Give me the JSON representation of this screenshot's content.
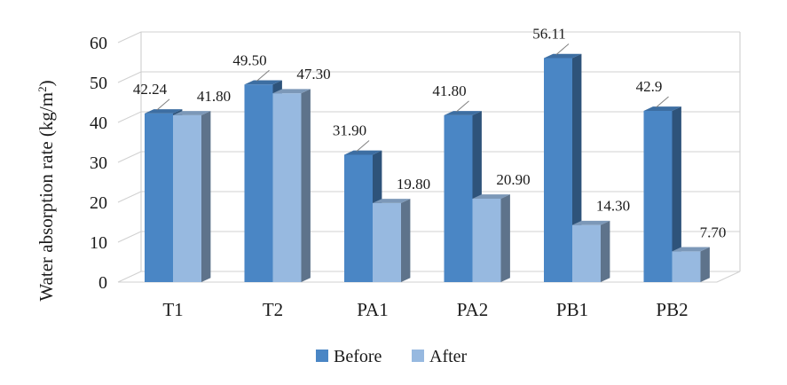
{
  "chart_data": {
    "type": "bar",
    "categories": [
      "T1",
      "T2",
      "PA1",
      "PA2",
      "PB1",
      "PB2"
    ],
    "series": [
      {
        "name": "Before",
        "values": [
          42.24,
          49.5,
          31.9,
          41.8,
          56.11,
          42.9
        ],
        "labels": [
          "42.24",
          "49.50",
          "31.90",
          "41.80",
          "56.11",
          "42.9"
        ],
        "color": "#4a86c5"
      },
      {
        "name": "After",
        "values": [
          41.8,
          47.3,
          19.8,
          20.9,
          14.3,
          7.7
        ],
        "labels": [
          "41.80",
          "47.30",
          "19.80",
          "20.90",
          "14.30",
          "7.70"
        ],
        "color": "#97b9e0"
      }
    ],
    "ylabel_main": "Water absorption rate (kg/m",
    "ylabel_sup": "2",
    "ylabel_end": ")",
    "ylim": [
      0,
      60
    ],
    "yticks": [
      "0",
      "10",
      "20",
      "30",
      "40",
      "50",
      "60"
    ],
    "grid": true,
    "legend": "bottom"
  }
}
